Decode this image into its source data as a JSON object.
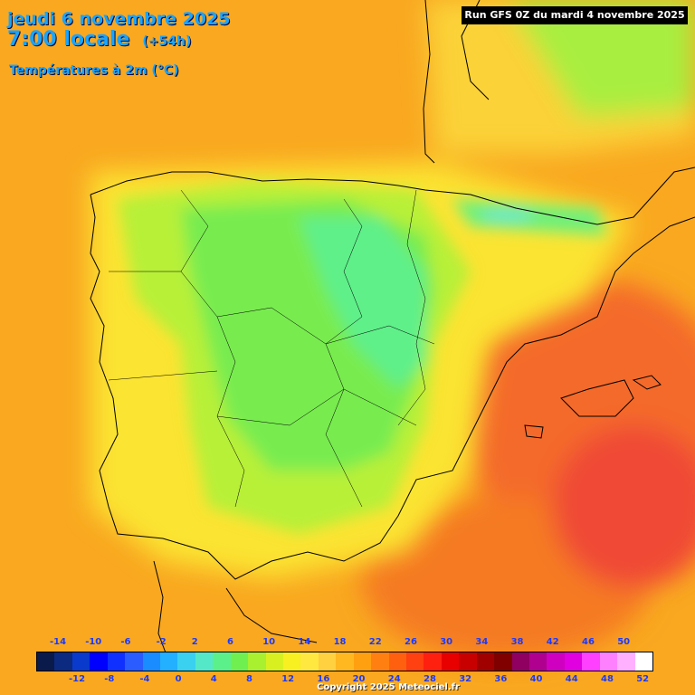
{
  "header": {
    "date_line": "jeudi 6 novembre 2025",
    "time_line": "7:00 locale",
    "offset": "(+54h)",
    "variable": "Températures à 2m (°C)"
  },
  "run_label": "Run GFS 0Z du mardi 4 novembre 2025",
  "copyright": "Copyright 2025 Meteociel.fr",
  "legend": {
    "colors": [
      "#0a1a4a",
      "#0b2a80",
      "#0a3acc",
      "#0000ff",
      "#1030ff",
      "#2a5cff",
      "#1a8cff",
      "#22b0ff",
      "#3ad0f0",
      "#55e8c8",
      "#5cf08a",
      "#70f050",
      "#a8f030",
      "#d8f020",
      "#f8f020",
      "#ffe840",
      "#ffd040",
      "#ffb820",
      "#ffa010",
      "#ff8010",
      "#ff6010",
      "#ff4010",
      "#ff2010",
      "#e80000",
      "#c80000",
      "#a00000",
      "#800000",
      "#900060",
      "#b00090",
      "#d000c0",
      "#e000e0",
      "#ff40ff",
      "#ff80ff",
      "#ffb0ff",
      "#ffffff"
    ],
    "top_labels": [
      "-14",
      "-10",
      "-6",
      "-2",
      "2",
      "6",
      "10",
      "14",
      "18",
      "22",
      "26",
      "30",
      "34",
      "38",
      "42",
      "46",
      "50"
    ],
    "bottom_labels": [
      "-12",
      "-8",
      "-4",
      "0",
      "4",
      "8",
      "12",
      "16",
      "20",
      "24",
      "28",
      "32",
      "36",
      "40",
      "44",
      "48",
      "52"
    ]
  },
  "colors": {
    "title": "#1aa3ff",
    "ocean_warm": "#f7b21f",
    "land_cool": "#60ec6a",
    "coast_hot": "#f25a2a"
  }
}
